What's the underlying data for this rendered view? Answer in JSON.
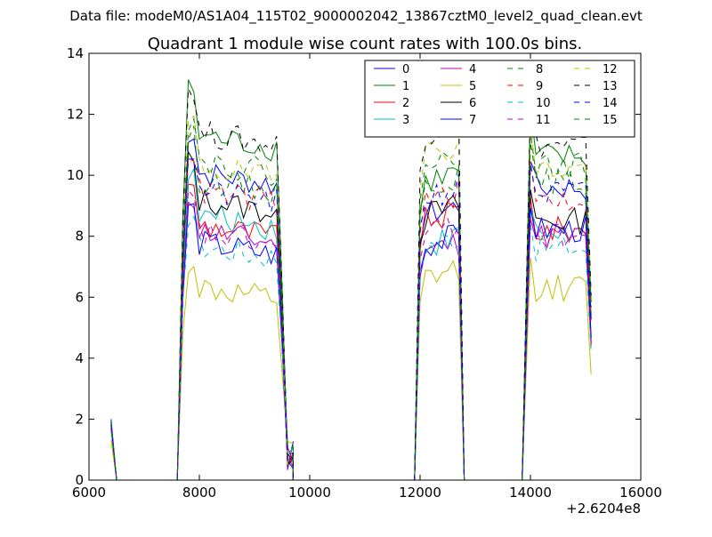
{
  "suptitle": "Data file: modeM0/AS1A04_115T02_9000002042_13867cztM0_level2_quad_clean.evt",
  "chart_data": {
    "type": "line",
    "title": "Quadrant 1 module wise count rates with 100.0s bins.",
    "xlabel": "",
    "ylabel": "",
    "x_offset_label": "+2.6204e8",
    "xlim": [
      6000,
      16000
    ],
    "ylim": [
      0,
      14
    ],
    "x_ticks": [
      6000,
      8000,
      10000,
      12000,
      14000,
      16000
    ],
    "x_tick_labels": [
      "6000",
      "8000",
      "10000",
      "12000",
      "14000",
      "16000"
    ],
    "y_ticks": [
      0,
      2,
      4,
      6,
      8,
      10,
      12,
      14
    ],
    "y_tick_labels": [
      "0",
      "2",
      "4",
      "6",
      "8",
      "10",
      "12",
      "14"
    ],
    "legend_position": "top-right",
    "legend_columns": 4,
    "segments": [
      {
        "x_start": 6400,
        "x_end": 6500,
        "bin": 100
      },
      {
        "x_start": 7600,
        "x_end": 9700,
        "bin": 100
      },
      {
        "x_start": 11900,
        "x_end": 12700,
        "bin": 100
      },
      {
        "x_start": 13900,
        "x_end": 15100,
        "bin": 100
      }
    ],
    "gap_points": [
      {
        "x": 6500,
        "y": 0
      },
      {
        "x": 7600,
        "y": 0
      },
      {
        "x": 9700,
        "y": 0
      },
      {
        "x": 11900,
        "y": 0
      },
      {
        "x": 12800,
        "y": 0
      },
      {
        "x": 13850,
        "y": 0
      }
    ],
    "series": [
      {
        "name": "0",
        "color": "#0000ff",
        "dash": false,
        "start": 2.0,
        "level1": 10.2,
        "level2": 8.6,
        "level3": 9.6
      },
      {
        "name": "1",
        "color": "#008000",
        "dash": false,
        "start": 1.9,
        "level1": 11.4,
        "level2": 9.7,
        "level3": 10.6
      },
      {
        "name": "2",
        "color": "#ff0000",
        "dash": false,
        "start": 1.8,
        "level1": 8.5,
        "level2": 8.4,
        "level3": 8.2
      },
      {
        "name": "3",
        "color": "#00bfbf",
        "dash": false,
        "start": 1.7,
        "level1": 8.8,
        "level2": 7.6,
        "level3": 8.1
      },
      {
        "name": "4",
        "color": "#bf00bf",
        "dash": false,
        "start": 1.8,
        "level1": 8.3,
        "level2": 7.4,
        "level3": 8.0
      },
      {
        "name": "5",
        "color": "#bfbf00",
        "dash": false,
        "start": 1.3,
        "level1": 6.4,
        "level2": 6.5,
        "level3": 6.3
      },
      {
        "name": "6",
        "color": "#000000",
        "dash": false,
        "start": 1.8,
        "level1": 9.3,
        "level2": 8.6,
        "level3": 8.5
      },
      {
        "name": "7",
        "color": "#0000ff",
        "dash": false,
        "start": 1.9,
        "level1": 7.9,
        "level2": 7.6,
        "level3": 8.2
      },
      {
        "name": "8",
        "color": "#008000",
        "dash": true,
        "start": 1.8,
        "level1": 10.0,
        "level2": 9.6,
        "level3": 9.8
      },
      {
        "name": "9",
        "color": "#ff0000",
        "dash": true,
        "start": 1.7,
        "level1": 9.6,
        "level2": 9.0,
        "level3": 9.2
      },
      {
        "name": "10",
        "color": "#00bfbf",
        "dash": true,
        "start": 1.6,
        "level1": 7.8,
        "level2": 7.6,
        "level3": 7.6
      },
      {
        "name": "11",
        "color": "#bf00bf",
        "dash": true,
        "start": 1.7,
        "level1": 8.2,
        "level2": 8.0,
        "level3": 8.0
      },
      {
        "name": "12",
        "color": "#bfbf00",
        "dash": true,
        "start": 1.8,
        "level1": 10.4,
        "level2": 10.6,
        "level3": 10.2
      },
      {
        "name": "13",
        "color": "#000000",
        "dash": true,
        "start": 1.9,
        "level1": 11.5,
        "level2": 11.3,
        "level3": 11.0
      },
      {
        "name": "14",
        "color": "#0000ff",
        "dash": true,
        "start": 1.8,
        "level1": 9.6,
        "level2": 9.2,
        "level3": 9.4
      },
      {
        "name": "15",
        "color": "#008000",
        "dash": true,
        "start": 1.9,
        "level1": 10.6,
        "level2": 10.2,
        "level3": 10.3
      }
    ]
  }
}
